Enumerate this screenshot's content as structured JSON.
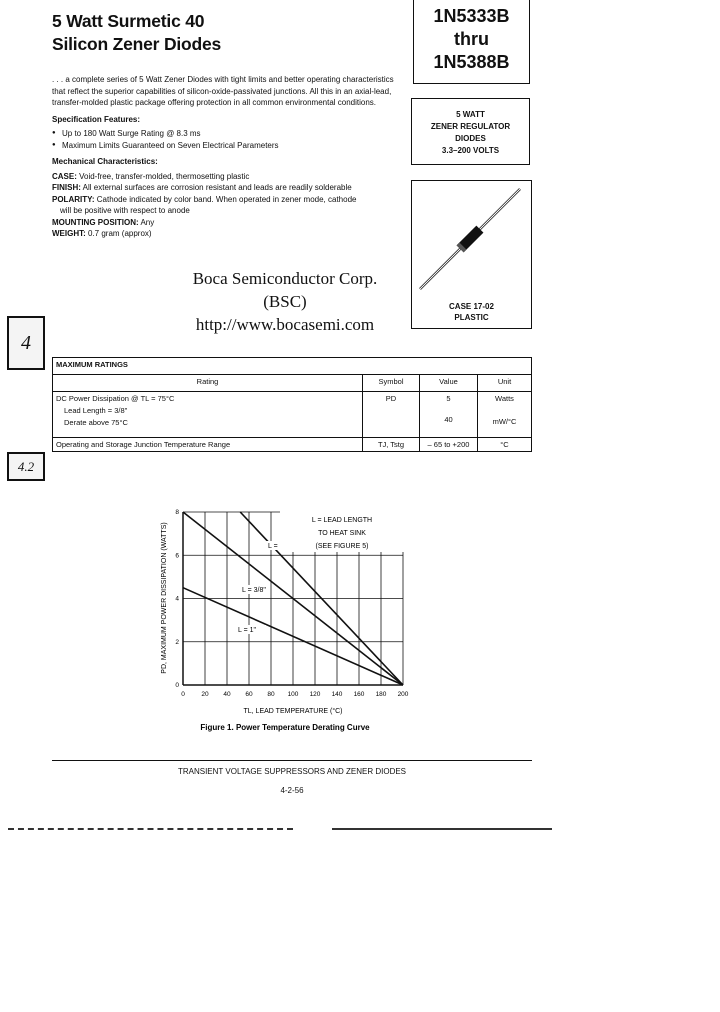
{
  "title": {
    "line1": "5 Watt Surmetic 40",
    "line2": "Silicon Zener Diodes"
  },
  "part_box": {
    "from": "1N5333B",
    "thru": "thru",
    "to": "1N5388B"
  },
  "regulator_box": [
    "5 WATT",
    "ZENER REGULATOR",
    "DIODES",
    "3.3–200 VOLTS"
  ],
  "package_box": {
    "case": "CASE 17-02",
    "material": "PLASTIC"
  },
  "intro": ". . . a complete series of 5 Watt Zener Diodes with tight limits and better operating characteristics that reflect the superior capabilities of silicon-oxide-passivated junctions. All this in an axial-lead, transfer-molded plastic package offering protection in all common environmental conditions.",
  "spec_features": {
    "heading": "Specification Features:",
    "items": [
      "Up to 180 Watt Surge Rating @ 8.3 ms",
      "Maximum Limits Guaranteed on Seven Electrical Parameters"
    ]
  },
  "mechanical": {
    "heading": "Mechanical Characteristics:",
    "case_label": "CASE:",
    "case": " Void-free, transfer-molded, thermosetting plastic",
    "finish_label": "FINISH:",
    "finish": " All external surfaces are corrosion resistant and leads are readily solderable",
    "polarity_label": "POLARITY:",
    "polarity": " Cathode indicated by color band. When operated in zener mode, cathode",
    "polarity_cont": "will be positive with respect to anode",
    "mounting_label": "MOUNTING POSITION:",
    "mounting": " Any",
    "weight_label": "WEIGHT:",
    "weight": " 0.7 gram (approx)"
  },
  "company": {
    "name": "Boca Semiconductor Corp.",
    "abbr": "(BSC)",
    "url": "http://www.bocasemi.com"
  },
  "side_tabs": {
    "section": "4",
    "page": "4.2"
  },
  "ratings_table": {
    "title": "MAXIMUM RATINGS",
    "headers": [
      "Rating",
      "Symbol",
      "Value",
      "Unit"
    ],
    "rows": [
      {
        "rating": "DC Power Dissipation @ TL = 75°C",
        "rating2": "Lead Length = 3/8\"",
        "rating3": "Derate above 75°C",
        "symbol": "PD",
        "value": "5",
        "value2": "40",
        "unit": "Watts",
        "unit2": "mW/°C"
      },
      {
        "rating": "Operating and Storage Junction Temperature Range",
        "symbol": "TJ, Tstg",
        "value": "– 65 to +200",
        "unit": "°C"
      }
    ]
  },
  "chart_data": {
    "type": "line",
    "title": "Figure 1. Power Temperature Derating Curve",
    "xlabel": "TL, LEAD TEMPERATURE (°C)",
    "ylabel": "PD, MAXIMUM POWER DISSIPATION (WATTS)",
    "xlim": [
      0,
      200
    ],
    "ylim": [
      0,
      8
    ],
    "xticks": [
      0,
      20,
      40,
      60,
      80,
      100,
      120,
      140,
      160,
      180,
      200
    ],
    "yticks": [
      0,
      2,
      4,
      6,
      8
    ],
    "grid": true,
    "legend_note": [
      "L = LEAD LENGTH",
      "TO HEAT SINK",
      "(SEE FIGURE 5)"
    ],
    "legend_placement": "top-right",
    "series": [
      {
        "name": "L = 1/8\"",
        "x": [
          52,
          200
        ],
        "y": [
          8,
          0
        ]
      },
      {
        "name": "L = 3/8\"",
        "x": [
          0,
          200
        ],
        "y": [
          8,
          0
        ]
      },
      {
        "name": "L = 1\"",
        "x": [
          0,
          200
        ],
        "y": [
          4.5,
          0
        ]
      }
    ]
  },
  "footer": {
    "section": "TRANSIENT VOLTAGE SUPPRESSORS AND ZENER DIODES",
    "page": "4-2-56"
  }
}
